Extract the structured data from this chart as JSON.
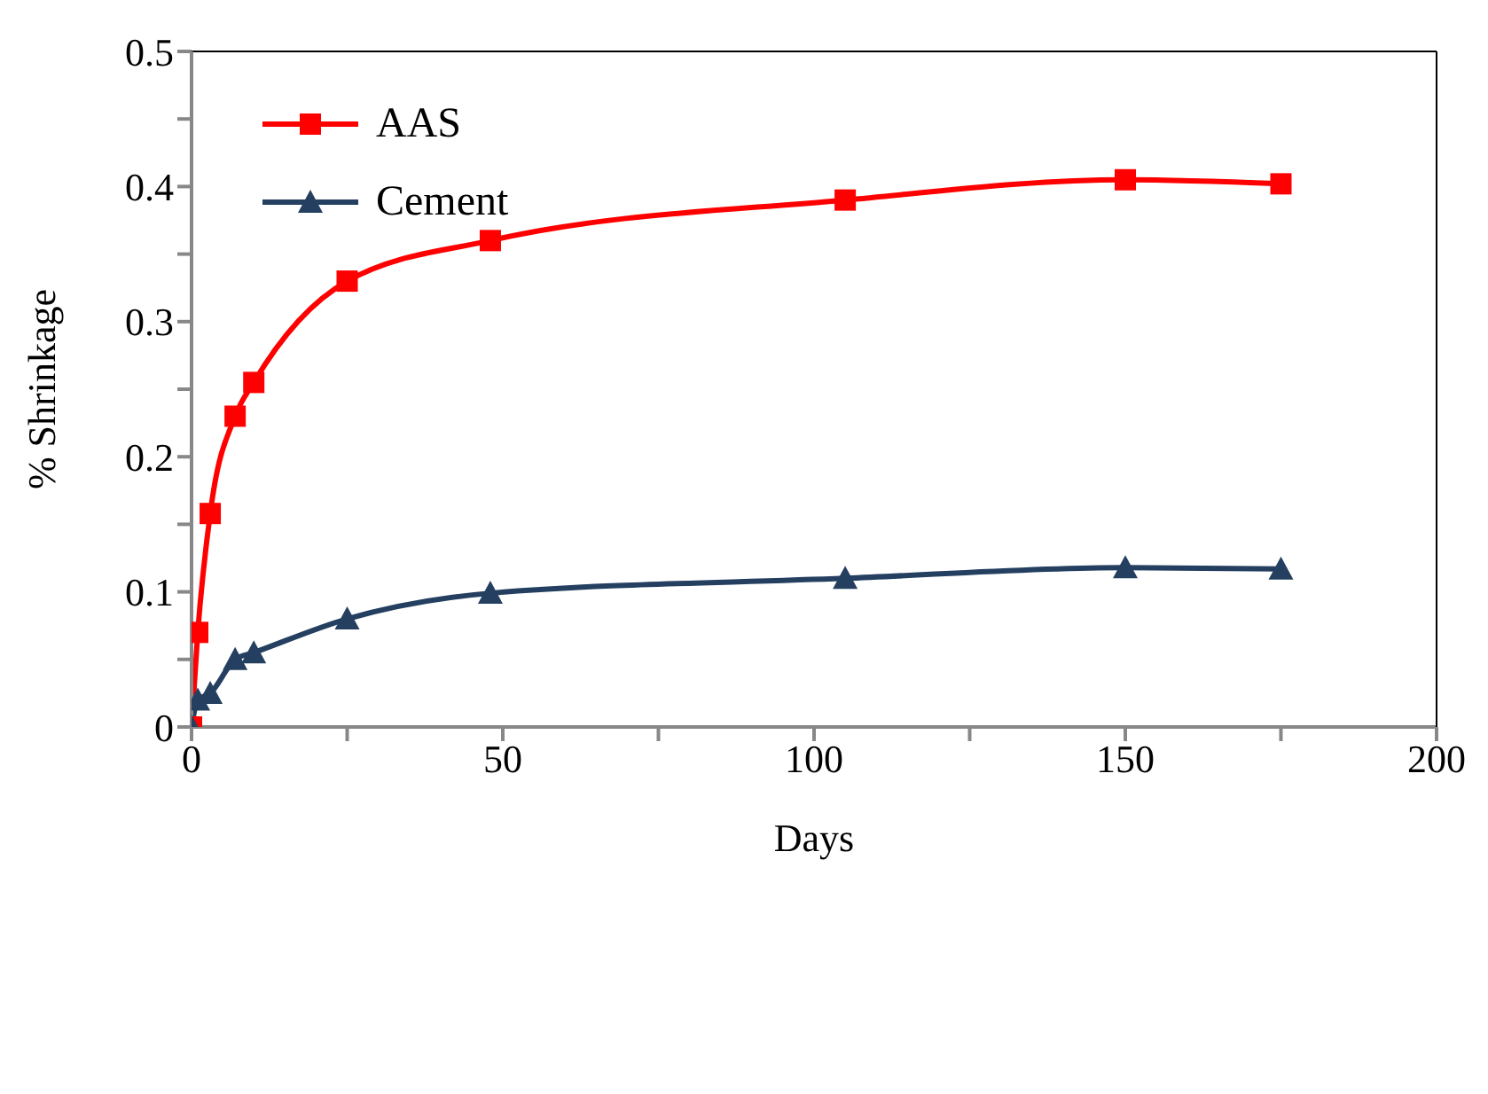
{
  "chart_data": {
    "type": "line",
    "xlabel": "Days",
    "ylabel": "% Shrinkage",
    "xlim": [
      0,
      200
    ],
    "xticks": [
      0,
      {
        "value": 25,
        "label": null
      },
      50,
      {
        "value": 75,
        "label": null
      },
      100,
      {
        "value": 125,
        "label": null
      },
      150,
      {
        "value": 175,
        "label": null
      },
      200
    ],
    "ylim": [
      0,
      0.5
    ],
    "yticks": [
      0,
      {
        "value": 0.05,
        "label": null
      },
      0.1,
      {
        "value": 0.15,
        "label": null
      },
      0.2,
      {
        "value": 0.25,
        "label": null
      },
      0.3,
      {
        "value": 0.35,
        "label": null
      },
      0.4,
      {
        "value": 0.45,
        "label": null
      },
      0.5
    ],
    "grid": false,
    "legend": "top left",
    "series": [
      {
        "name": "AAS",
        "color": "#ff0000",
        "marker": "square",
        "x": [
          0,
          1,
          3,
          7,
          10,
          25,
          48,
          105,
          150,
          175
        ],
        "values": [
          0,
          0.07,
          0.158,
          0.23,
          0.255,
          0.33,
          0.36,
          0.39,
          0.405,
          0.402
        ]
      },
      {
        "name": "Cement",
        "color": "#243f60",
        "marker": "triangle",
        "x": [
          0,
          1,
          3,
          7,
          10,
          25,
          48,
          105,
          150,
          175
        ],
        "values": [
          0,
          0.02,
          0.025,
          0.05,
          0.055,
          0.08,
          0.099,
          0.11,
          0.118,
          0.117
        ]
      }
    ]
  }
}
